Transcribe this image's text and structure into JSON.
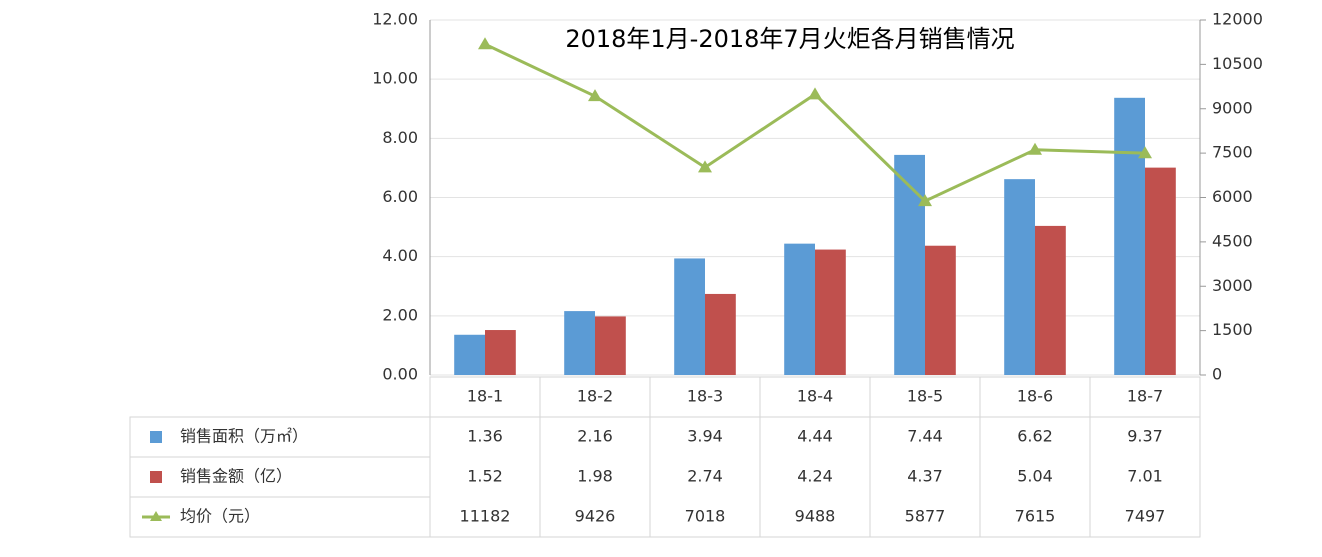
{
  "chart_data": {
    "type": "bar-line-table",
    "title": "2018年1月-2018年7月火炬各月销售情况",
    "categories": [
      "18-1",
      "18-2",
      "18-3",
      "18-4",
      "18-5",
      "18-6",
      "18-7"
    ],
    "series": [
      {
        "name": "销售面积（万㎡）",
        "type": "bar",
        "color": "#5b9bd5",
        "values": [
          1.36,
          2.16,
          3.94,
          4.44,
          7.44,
          6.62,
          9.37
        ]
      },
      {
        "name": "销售金额（亿）",
        "type": "bar",
        "color": "#c0504d",
        "values": [
          1.52,
          1.98,
          2.74,
          4.24,
          4.37,
          5.04,
          7.01
        ]
      },
      {
        "name": "均价（元）",
        "type": "line",
        "axis": "y2",
        "color": "#9bbb59",
        "values": [
          11182,
          9426,
          7018,
          9488,
          5877,
          7615,
          7497
        ]
      }
    ],
    "ylim": [
      0,
      12
    ],
    "yticks": [
      {
        "value": 0,
        "label": "0.00"
      },
      {
        "value": 2,
        "label": "2.00"
      },
      {
        "value": 4,
        "label": "4.00"
      },
      {
        "value": 6,
        "label": "6.00"
      },
      {
        "value": 8,
        "label": "8.00"
      },
      {
        "value": 10,
        "label": "10.00"
      },
      {
        "value": 12,
        "label": "12.00"
      }
    ],
    "y2lim": [
      0,
      12000
    ],
    "y2ticks": [
      0,
      1500,
      3000,
      4500,
      6000,
      7500,
      9000,
      10500,
      12000
    ],
    "grid": true
  }
}
